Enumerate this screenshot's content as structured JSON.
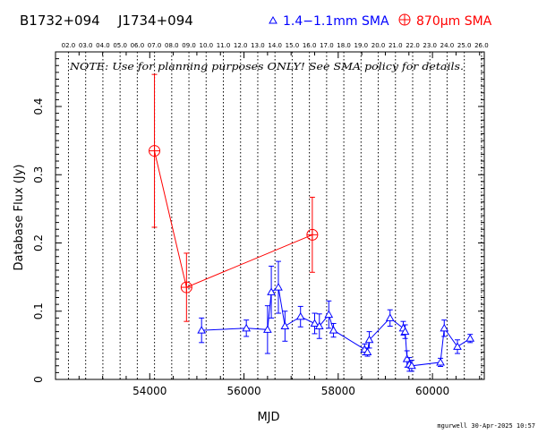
{
  "header": {
    "source_name": "B1732+094",
    "alt_name": "J1734+094",
    "legend_low_band": "1.4−1.1mm SMA",
    "legend_high_band": "870μm SMA"
  },
  "note": "NOTE: Use for planning purposes ONLY!  See SMA policy for details.",
  "footer": {
    "credit": "mgurwell 30-Apr-2025 10:57"
  },
  "colors": {
    "low_band": "#0000ff",
    "high_band": "#ff0000",
    "axes": "#000000"
  },
  "chart_data": {
    "type": "scatter",
    "xlabel": "MJD",
    "ylabel": "Database Flux (Jy)",
    "xlim": [
      52000,
      61100
    ],
    "ylim": [
      0,
      0.48
    ],
    "x_ticks": [
      54000,
      56000,
      58000,
      60000
    ],
    "x_tick_labels": [
      "54000",
      "56000",
      "58000",
      "60000"
    ],
    "y_ticks": [
      0,
      0.1,
      0.2,
      0.3,
      0.4
    ],
    "y_tick_labels": [
      "0",
      "0.1",
      "0.2",
      "0.3",
      "0.4"
    ],
    "top_axis": {
      "label_values": [
        2,
        3,
        4,
        5,
        6,
        7,
        8,
        9,
        10,
        11,
        12,
        13,
        14,
        15,
        16,
        17,
        18,
        19,
        20,
        21,
        22,
        23,
        24,
        25,
        26
      ],
      "labels": [
        "02.0",
        "03.0",
        "04.0",
        "05.0",
        "06.0",
        "07.0",
        "08.0",
        "09.0",
        "10.0",
        "11.0",
        "12.0",
        "13.0",
        "14.0",
        "15.0",
        "16.0",
        "17.0",
        "18.0",
        "19.0",
        "20.0",
        "21.0",
        "22.0",
        "23.0",
        "24.0",
        "25.0",
        "26.0"
      ]
    },
    "year_gridlines": true,
    "legend_position": "top",
    "series": [
      {
        "name": "1.4−1.1mm SMA",
        "color": "#0000ff",
        "marker": "triangle",
        "connected": true,
        "points": [
          {
            "x": 55100,
            "y": 0.072,
            "err": 0.018
          },
          {
            "x": 56050,
            "y": 0.075,
            "err": 0.012
          },
          {
            "x": 56500,
            "y": 0.073,
            "err": 0.035
          },
          {
            "x": 56580,
            "y": 0.128,
            "err": 0.038
          },
          {
            "x": 56730,
            "y": 0.135,
            "err": 0.038
          },
          {
            "x": 56870,
            "y": 0.078,
            "err": 0.022
          },
          {
            "x": 57200,
            "y": 0.092,
            "err": 0.015
          },
          {
            "x": 57500,
            "y": 0.082,
            "err": 0.015
          },
          {
            "x": 57600,
            "y": 0.078,
            "err": 0.018
          },
          {
            "x": 57800,
            "y": 0.095,
            "err": 0.02
          },
          {
            "x": 57900,
            "y": 0.072,
            "err": 0.01
          },
          {
            "x": 58560,
            "y": 0.044,
            "err": 0.008
          },
          {
            "x": 58620,
            "y": 0.04,
            "err": 0.006
          },
          {
            "x": 58660,
            "y": 0.058,
            "err": 0.012
          },
          {
            "x": 59100,
            "y": 0.09,
            "err": 0.012
          },
          {
            "x": 59380,
            "y": 0.075,
            "err": 0.01
          },
          {
            "x": 59420,
            "y": 0.07,
            "err": 0.01
          },
          {
            "x": 59460,
            "y": 0.03,
            "err": 0.012
          },
          {
            "x": 59510,
            "y": 0.022,
            "err": 0.01
          },
          {
            "x": 59560,
            "y": 0.02,
            "err": 0.008
          },
          {
            "x": 60170,
            "y": 0.025,
            "err": 0.006
          },
          {
            "x": 60250,
            "y": 0.075,
            "err": 0.012
          },
          {
            "x": 60530,
            "y": 0.048,
            "err": 0.01
          },
          {
            "x": 60800,
            "y": 0.06,
            "err": 0.006
          }
        ]
      },
      {
        "name": "870μm SMA",
        "color": "#ff0000",
        "marker": "circle-plus",
        "connected": true,
        "points": [
          {
            "x": 54100,
            "y": 0.335,
            "err": 0.112
          },
          {
            "x": 54780,
            "y": 0.135,
            "err": 0.05
          },
          {
            "x": 57450,
            "y": 0.212,
            "err": 0.055
          }
        ]
      }
    ]
  }
}
